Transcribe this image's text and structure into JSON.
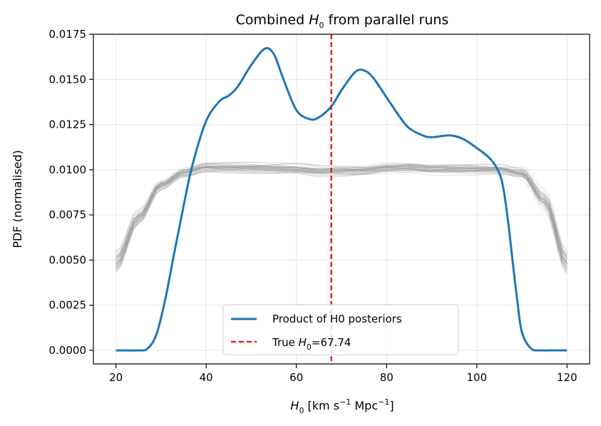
{
  "chart_data": {
    "type": "line",
    "title": {
      "prefix": "Combined ",
      "symbol": "H",
      "subscript": "0",
      "suffix": " from parallel runs"
    },
    "xlabel": {
      "symbol": "H",
      "subscript": "0",
      "text": " [km s",
      "sup1": "−1",
      "mid": " Mpc",
      "sup2": "−1",
      "end": "]"
    },
    "ylabel": "PDF (normalised)",
    "xlim": [
      15,
      125
    ],
    "ylim": [
      -0.00075,
      0.0175
    ],
    "xticks": [
      20,
      40,
      60,
      80,
      100,
      120
    ],
    "xtick_labels": [
      "20",
      "40",
      "60",
      "80",
      "100",
      "120"
    ],
    "yticks": [
      0,
      0.0025,
      0.005,
      0.0075,
      0.01,
      0.0125,
      0.015,
      0.0175
    ],
    "ytick_labels": [
      "0.0000",
      "0.0025",
      "0.0050",
      "0.0075",
      "0.0100",
      "0.0125",
      "0.0150",
      "0.0175"
    ],
    "grid": true,
    "background_runs": {
      "count": 40,
      "color": "#999999",
      "x": [
        20,
        25,
        30,
        35,
        40,
        45,
        50,
        55,
        60,
        65,
        70,
        75,
        80,
        85,
        90,
        95,
        100,
        105,
        110,
        115,
        120
      ],
      "mean": [
        0.0048,
        0.0073,
        0.0091,
        0.0098,
        0.0101,
        0.0101,
        0.0101,
        0.0101,
        0.0101,
        0.01,
        0.01,
        0.01,
        0.0101,
        0.0101,
        0.01,
        0.01,
        0.01,
        0.01,
        0.0098,
        0.0083,
        0.0048
      ]
    },
    "series": [
      {
        "name": "Product of H0 posteriors",
        "color": "#1f77b4",
        "x": [
          20,
          25,
          27,
          29,
          31,
          33,
          35,
          37,
          40,
          43,
          45,
          47,
          50,
          53,
          55,
          57,
          60,
          63,
          65,
          67.74,
          70,
          73,
          75,
          77,
          80,
          83,
          85,
          88,
          90,
          94,
          97,
          100,
          103,
          105,
          106,
          107,
          108,
          109,
          110,
          112,
          114,
          116,
          120
        ],
        "y": [
          0,
          0,
          0.0001,
          0.0009,
          0.0029,
          0.0055,
          0.008,
          0.0103,
          0.0127,
          0.0138,
          0.0141,
          0.0146,
          0.0158,
          0.0167,
          0.0164,
          0.0151,
          0.0133,
          0.0128,
          0.0129,
          0.0135,
          0.0144,
          0.0154,
          0.0155,
          0.0151,
          0.014,
          0.0129,
          0.0123,
          0.0119,
          0.0118,
          0.0119,
          0.0117,
          0.0112,
          0.0106,
          0.0098,
          0.0088,
          0.007,
          0.0048,
          0.0027,
          0.001,
          0.0001,
          0,
          0,
          0
        ]
      }
    ],
    "reference_line": {
      "x": 67.74,
      "color": "#d62728",
      "style": "dashed"
    },
    "legend": {
      "location": "lower-center",
      "entries": [
        {
          "label": "Product of H0 posteriors"
        },
        {
          "label_prefix": "True ",
          "symbol": "H",
          "subscript": "0",
          "label_suffix": "=67.74"
        }
      ]
    }
  }
}
